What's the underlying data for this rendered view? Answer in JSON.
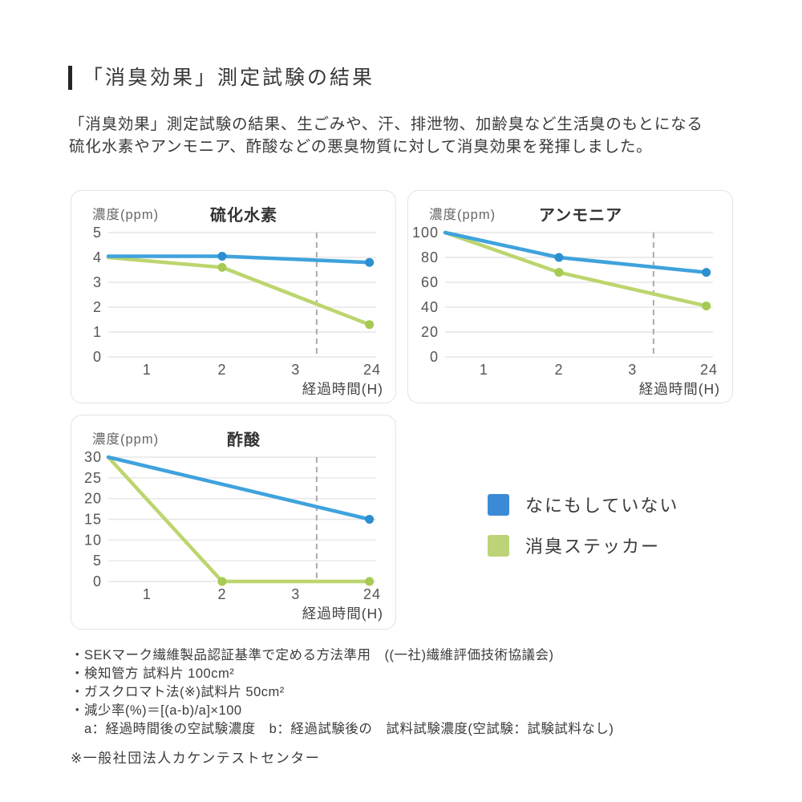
{
  "page": {
    "title": "「消臭効果」測定試験の結果",
    "description_lines": [
      "「消臭効果」測定試験の結果、生ごみや、汗、排泄物、加齢臭など生活臭のもとになる",
      "硫化水素やアンモニア、酢酸などの悪臭物質に対して消臭効果を発揮しました。"
    ]
  },
  "colors": {
    "blue_line": "#3fa2dc",
    "blue_dot": "#2d8ed0",
    "green_line": "#bcd56e",
    "green_dot": "#a6ca52",
    "legend_blue": "#3c8ad6",
    "legend_green": "#bcd377",
    "grid": "#e6e6e6",
    "dashed_guide": "#ababab",
    "tick_text": "#555555",
    "unit_text": "#666666",
    "title_text": "#333333"
  },
  "legend": {
    "items": [
      {
        "key": "control",
        "label": "なにもしていない",
        "color": "#3c8ad6"
      },
      {
        "key": "deodorizing-sticker",
        "label": "消臭ステッカー",
        "color": "#bcd377"
      }
    ]
  },
  "chart_data": [
    {
      "type": "line",
      "id": "hydrogen-sulfide",
      "title": "硫化水素",
      "ylabel": "濃度(ppm)",
      "xlabel": "経過時間(H)",
      "x_ticks": [
        "1",
        "2",
        "3",
        "24"
      ],
      "ylim": [
        0,
        5
      ],
      "y_ticks": [
        5,
        4,
        3,
        2,
        1,
        0
      ],
      "grid": "horizontal",
      "dashed_guide_between": [
        "3",
        "24"
      ],
      "series": [
        {
          "key": "control",
          "name": "なにもしていない",
          "color": "#3fa2dc",
          "dot_color": "#2d8ed0",
          "points": [
            {
              "t": "0",
              "v": 4.05,
              "dot": false
            },
            {
              "t": "2",
              "v": 4.05,
              "dot": true
            },
            {
              "t": "24",
              "v": 3.8,
              "dot": true
            }
          ]
        },
        {
          "key": "deodorizing-sticker",
          "name": "消臭ステッカー",
          "color": "#bcd56e",
          "dot_color": "#a6ca52",
          "points": [
            {
              "t": "0",
              "v": 4.0,
              "dot": false
            },
            {
              "t": "2",
              "v": 3.6,
              "dot": true
            },
            {
              "t": "24",
              "v": 1.3,
              "dot": true
            }
          ]
        }
      ]
    },
    {
      "type": "line",
      "id": "ammonia",
      "title": "アンモニア",
      "ylabel": "濃度(ppm)",
      "xlabel": "経過時間(H)",
      "x_ticks": [
        "1",
        "2",
        "3",
        "24"
      ],
      "ylim": [
        0,
        100
      ],
      "y_ticks": [
        100,
        80,
        60,
        40,
        20,
        0
      ],
      "grid": "horizontal",
      "dashed_guide_between": [
        "3",
        "24"
      ],
      "series": [
        {
          "key": "control",
          "name": "なにもしていない",
          "color": "#3fa2dc",
          "dot_color": "#2d8ed0",
          "points": [
            {
              "t": "0",
              "v": 100,
              "dot": false
            },
            {
              "t": "2",
              "v": 80,
              "dot": true
            },
            {
              "t": "24",
              "v": 68,
              "dot": true
            }
          ]
        },
        {
          "key": "deodorizing-sticker",
          "name": "消臭ステッカー",
          "color": "#bcd56e",
          "dot_color": "#a6ca52",
          "points": [
            {
              "t": "0",
              "v": 100,
              "dot": false
            },
            {
              "t": "2",
              "v": 68,
              "dot": true
            },
            {
              "t": "24",
              "v": 41,
              "dot": true
            }
          ]
        }
      ]
    },
    {
      "type": "line",
      "id": "acetic-acid",
      "title": "酢酸",
      "ylabel": "濃度(ppm)",
      "xlabel": "経過時間(H)",
      "x_ticks": [
        "1",
        "2",
        "3",
        "24"
      ],
      "ylim": [
        0,
        30
      ],
      "y_ticks": [
        30,
        25,
        20,
        15,
        10,
        5,
        0
      ],
      "grid": "horizontal",
      "dashed_guide_between": [
        "3",
        "24"
      ],
      "series": [
        {
          "key": "control",
          "name": "なにもしていない",
          "color": "#3fa2dc",
          "dot_color": "#2d8ed0",
          "points": [
            {
              "t": "0",
              "v": 30,
              "dot": false
            },
            {
              "t": "24",
              "v": 15,
              "dot": true
            }
          ]
        },
        {
          "key": "deodorizing-sticker",
          "name": "消臭ステッカー",
          "color": "#bcd56e",
          "dot_color": "#a6ca52",
          "points": [
            {
              "t": "0",
              "v": 30,
              "dot": false
            },
            {
              "t": "2",
              "v": 0,
              "dot": true
            },
            {
              "t": "24",
              "v": 0,
              "dot": true
            }
          ]
        }
      ]
    }
  ],
  "footnotes": {
    "lines": [
      "・SEKマーク繊維製品認証基準で定める方法準用　((一社)繊維評価技術協議会)",
      "・検知管方 試料片 100cm²",
      "・ガスクロマト法(※)試料片 50cm²",
      "・減少率(%)＝[(a-b)/a]×100",
      "　a：経過時間後の空試験濃度　b：経過試験後の　試料試験濃度(空試験：試験試料なし)"
    ],
    "final": "※一般社団法人カケンテストセンター"
  }
}
